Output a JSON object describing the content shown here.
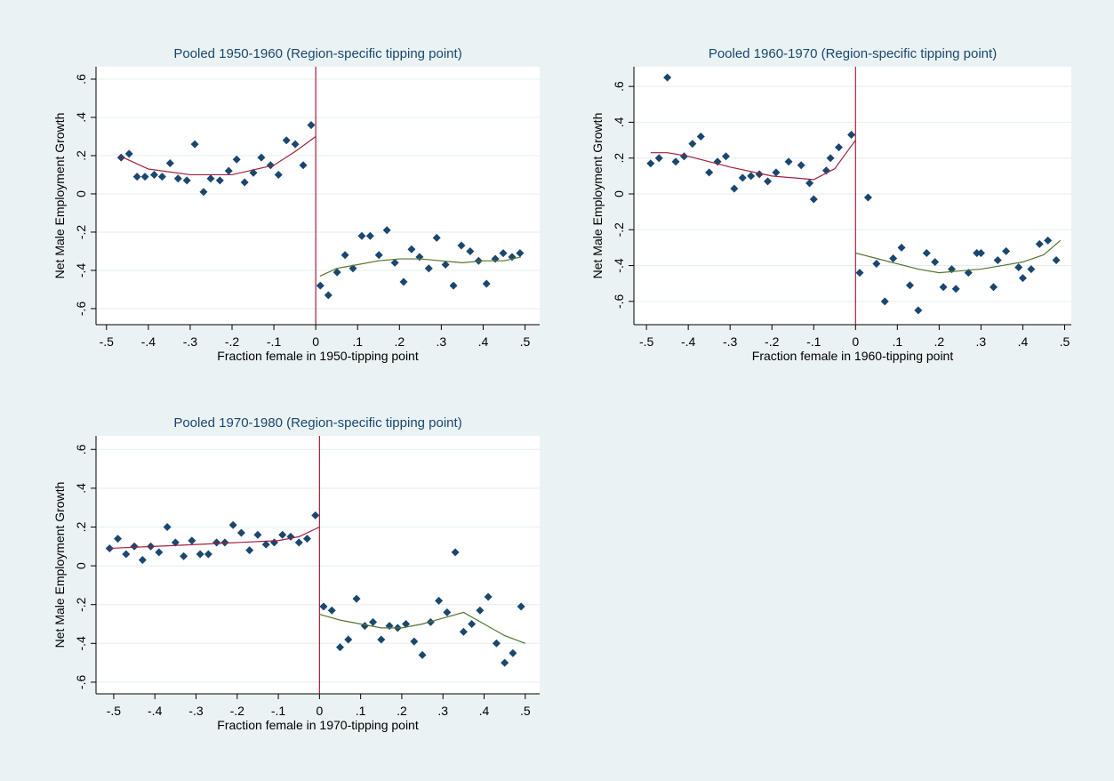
{
  "chart_data": [
    {
      "type": "scatter",
      "title": "Pooled 1950-1960 (Region-specific tipping point)",
      "x_label": "Fraction female in 1950-tipping point",
      "y_label": "Net Male Employment Growth",
      "xlim": [
        -0.525,
        0.535
      ],
      "ylim": [
        -0.684,
        0.665
      ],
      "grid": true,
      "cutoff": 0,
      "cutoff_color": "#a0203a",
      "xticks": [
        {
          "value": -0.5,
          "label": "-.5"
        },
        {
          "value": -0.4,
          "label": "-.4"
        },
        {
          "value": -0.3,
          "label": "-.3"
        },
        {
          "value": -0.2,
          "label": "-.2"
        },
        {
          "value": -0.1,
          "label": "-.1"
        },
        0,
        {
          "value": 0.1,
          "label": ".1"
        },
        {
          "value": 0.2,
          "label": ".2"
        },
        {
          "value": 0.3,
          "label": ".3"
        },
        {
          "value": 0.4,
          "label": ".4"
        },
        {
          "value": 0.5,
          "label": ".5"
        }
      ],
      "yticks": [
        {
          "value": 0.6,
          "label": ".6"
        },
        {
          "value": 0.4,
          "label": ".4"
        },
        {
          "value": 0.2,
          "label": ".2"
        },
        0,
        {
          "value": -0.2,
          "label": "-.2"
        },
        {
          "value": -0.4,
          "label": "-.4"
        },
        {
          "value": -0.6,
          "label": "-.6"
        }
      ],
      "series": [
        {
          "type": "scatter",
          "color": "#1a476f",
          "x": [
            -0.465,
            -0.446,
            -0.427,
            -0.408,
            -0.386,
            -0.367,
            -0.348,
            -0.329,
            -0.308,
            -0.289,
            -0.268,
            -0.251,
            -0.229,
            -0.208,
            -0.189,
            -0.17,
            -0.149,
            -0.13,
            -0.108,
            -0.089,
            -0.07,
            -0.049,
            -0.03,
            -0.011,
            0.011,
            0.03,
            0.051,
            0.07,
            0.089,
            0.11,
            0.13,
            0.151,
            0.17,
            0.189,
            0.21,
            0.229,
            0.248,
            0.27,
            0.289,
            0.31,
            0.329,
            0.348,
            0.369,
            0.389,
            0.408,
            0.429,
            0.448,
            0.469,
            0.488
          ],
          "y": [
            0.19,
            0.21,
            0.09,
            0.09,
            0.1,
            0.09,
            0.16,
            0.08,
            0.07,
            0.26,
            0.01,
            0.08,
            0.07,
            0.12,
            0.18,
            0.06,
            0.11,
            0.19,
            0.15,
            0.1,
            0.28,
            0.26,
            0.15,
            0.36,
            -0.48,
            -0.53,
            -0.41,
            -0.32,
            -0.39,
            -0.22,
            -0.22,
            -0.32,
            -0.19,
            -0.36,
            -0.46,
            -0.29,
            -0.33,
            -0.39,
            -0.23,
            -0.37,
            -0.48,
            -0.27,
            -0.3,
            -0.35,
            -0.47,
            -0.34,
            -0.31,
            -0.33,
            -0.31
          ]
        },
        {
          "type": "line",
          "color": "#a0203a",
          "x": [
            -0.47,
            -0.4,
            -0.3,
            -0.2,
            -0.1,
            -0.05,
            0
          ],
          "y": [
            0.2,
            0.13,
            0.1,
            0.1,
            0.15,
            0.22,
            0.3
          ]
        },
        {
          "type": "line",
          "color": "#55752f",
          "x": [
            0.01,
            0.05,
            0.1,
            0.15,
            0.2,
            0.25,
            0.3,
            0.35,
            0.4,
            0.45,
            0.49
          ],
          "y": [
            -0.43,
            -0.39,
            -0.37,
            -0.35,
            -0.34,
            -0.34,
            -0.35,
            -0.36,
            -0.35,
            -0.35,
            -0.33
          ]
        }
      ]
    },
    {
      "type": "scatter",
      "title": "Pooled 1960-1970 (Region-specific tipping point)",
      "x_label": "Fraction female in 1960-tipping point",
      "y_label": "Net Male Employment Growth",
      "xlim": [
        -0.53,
        0.516
      ],
      "ylim": [
        -0.73,
        0.71
      ],
      "grid": true,
      "cutoff": 0,
      "cutoff_color": "#a0203a",
      "xticks": [
        {
          "value": -0.5,
          "label": "-.5"
        },
        {
          "value": -0.4,
          "label": "-.4"
        },
        {
          "value": -0.3,
          "label": "-.3"
        },
        {
          "value": -0.2,
          "label": "-.2"
        },
        {
          "value": -0.1,
          "label": "-.1"
        },
        0,
        {
          "value": 0.1,
          "label": ".1"
        },
        {
          "value": 0.2,
          "label": ".2"
        },
        {
          "value": 0.3,
          "label": ".3"
        },
        {
          "value": 0.4,
          "label": ".4"
        },
        {
          "value": 0.5,
          "label": ".5"
        }
      ],
      "yticks": [
        {
          "value": 0.6,
          "label": ".6"
        },
        {
          "value": 0.4,
          "label": ".4"
        },
        {
          "value": 0.2,
          "label": ".2"
        },
        0,
        {
          "value": -0.2,
          "label": "-.2"
        },
        {
          "value": -0.4,
          "label": "-.4"
        },
        {
          "value": -0.6,
          "label": "-.6"
        }
      ],
      "series": [
        {
          "type": "scatter",
          "color": "#1a476f",
          "x": [
            -0.49,
            -0.47,
            -0.45,
            -0.43,
            -0.41,
            -0.39,
            -0.37,
            -0.35,
            -0.33,
            -0.31,
            -0.29,
            -0.27,
            -0.25,
            -0.23,
            -0.21,
            -0.19,
            -0.16,
            -0.13,
            -0.11,
            -0.1,
            -0.07,
            -0.06,
            -0.04,
            -0.01,
            0.01,
            0.03,
            0.05,
            0.07,
            0.09,
            0.11,
            0.13,
            0.15,
            0.17,
            0.19,
            0.21,
            0.23,
            0.24,
            0.27,
            0.29,
            0.3,
            0.33,
            0.34,
            0.36,
            0.39,
            0.4,
            0.42,
            0.44,
            0.46,
            0.48
          ],
          "y": [
            0.17,
            0.2,
            0.65,
            0.18,
            0.21,
            0.28,
            0.32,
            0.12,
            0.18,
            0.21,
            0.03,
            0.09,
            0.1,
            0.11,
            0.07,
            0.12,
            0.18,
            0.16,
            0.06,
            -0.03,
            0.13,
            0.2,
            0.26,
            0.33,
            -0.44,
            -0.02,
            -0.39,
            -0.6,
            -0.36,
            -0.3,
            -0.51,
            -0.65,
            -0.33,
            -0.38,
            -0.52,
            -0.42,
            -0.53,
            -0.44,
            -0.33,
            -0.33,
            -0.52,
            -0.37,
            -0.32,
            -0.41,
            -0.47,
            -0.42,
            -0.28,
            -0.26,
            -0.37
          ]
        },
        {
          "type": "line",
          "color": "#a0203a",
          "x": [
            -0.49,
            -0.45,
            -0.4,
            -0.3,
            -0.2,
            -0.1,
            -0.05,
            0
          ],
          "y": [
            0.23,
            0.23,
            0.21,
            0.15,
            0.1,
            0.08,
            0.14,
            0.3
          ]
        },
        {
          "type": "line",
          "color": "#55752f",
          "x": [
            0,
            0.05,
            0.1,
            0.15,
            0.2,
            0.25,
            0.3,
            0.35,
            0.4,
            0.45,
            0.49
          ],
          "y": [
            -0.33,
            -0.36,
            -0.39,
            -0.42,
            -0.44,
            -0.43,
            -0.42,
            -0.4,
            -0.38,
            -0.34,
            -0.26
          ]
        }
      ]
    },
    {
      "type": "scatter",
      "title": "Pooled 1970-1980 (Region-specific tipping point)",
      "x_label": "Fraction female in 1970-tipping point",
      "y_label": "Net Male Employment Growth",
      "xlim": [
        -0.543,
        0.535
      ],
      "ylim": [
        -0.66,
        0.67
      ],
      "grid": true,
      "cutoff": 0,
      "cutoff_color": "#a0203a",
      "xticks": [
        {
          "value": -0.5,
          "label": "-.5"
        },
        {
          "value": -0.4,
          "label": "-.4"
        },
        {
          "value": -0.3,
          "label": "-.3"
        },
        {
          "value": -0.2,
          "label": "-.2"
        },
        {
          "value": -0.1,
          "label": "-.1"
        },
        0,
        {
          "value": 0.1,
          "label": ".1"
        },
        {
          "value": 0.2,
          "label": ".2"
        },
        {
          "value": 0.3,
          "label": ".3"
        },
        {
          "value": 0.4,
          "label": ".4"
        },
        {
          "value": 0.5,
          "label": ".5"
        }
      ],
      "yticks": [
        {
          "value": 0.6,
          "label": ".6"
        },
        {
          "value": 0.4,
          "label": ".4"
        },
        {
          "value": 0.2,
          "label": ".2"
        },
        0,
        {
          "value": -0.2,
          "label": "-.2"
        },
        {
          "value": -0.4,
          "label": "-.4"
        },
        {
          "value": -0.6,
          "label": "-.6"
        }
      ],
      "series": [
        {
          "type": "scatter",
          "color": "#1a476f",
          "x": [
            -0.51,
            -0.49,
            -0.47,
            -0.45,
            -0.43,
            -0.41,
            -0.39,
            -0.37,
            -0.35,
            -0.33,
            -0.31,
            -0.29,
            -0.27,
            -0.25,
            -0.23,
            -0.21,
            -0.19,
            -0.17,
            -0.15,
            -0.13,
            -0.11,
            -0.09,
            -0.07,
            -0.05,
            -0.03,
            -0.01,
            0.01,
            0.03,
            0.05,
            0.07,
            0.09,
            0.11,
            0.13,
            0.15,
            0.17,
            0.19,
            0.21,
            0.23,
            0.25,
            0.27,
            0.29,
            0.31,
            0.33,
            0.35,
            0.37,
            0.39,
            0.41,
            0.43,
            0.45,
            0.47,
            0.49
          ],
          "y": [
            0.09,
            0.14,
            0.06,
            0.1,
            0.03,
            0.1,
            0.07,
            0.2,
            0.12,
            0.05,
            0.13,
            0.06,
            0.06,
            0.12,
            0.12,
            0.21,
            0.17,
            0.08,
            0.16,
            0.11,
            0.12,
            0.16,
            0.15,
            0.12,
            0.14,
            0.26,
            -0.21,
            -0.23,
            -0.42,
            -0.38,
            -0.17,
            -0.31,
            -0.29,
            -0.38,
            -0.31,
            -0.32,
            -0.3,
            -0.39,
            -0.46,
            -0.29,
            -0.18,
            -0.24,
            0.07,
            -0.34,
            -0.3,
            -0.23,
            -0.16,
            -0.4,
            -0.5,
            -0.45,
            -0.21
          ]
        },
        {
          "type": "line",
          "color": "#a0203a",
          "x": [
            -0.51,
            -0.4,
            -0.3,
            -0.2,
            -0.1,
            -0.05,
            0
          ],
          "y": [
            0.09,
            0.1,
            0.11,
            0.12,
            0.13,
            0.15,
            0.2
          ]
        },
        {
          "type": "line",
          "color": "#55752f",
          "x": [
            0,
            0.05,
            0.1,
            0.15,
            0.2,
            0.25,
            0.3,
            0.35,
            0.4,
            0.45,
            0.5
          ],
          "y": [
            -0.25,
            -0.28,
            -0.3,
            -0.32,
            -0.32,
            -0.3,
            -0.27,
            -0.24,
            -0.3,
            -0.36,
            -0.4
          ]
        }
      ]
    }
  ]
}
